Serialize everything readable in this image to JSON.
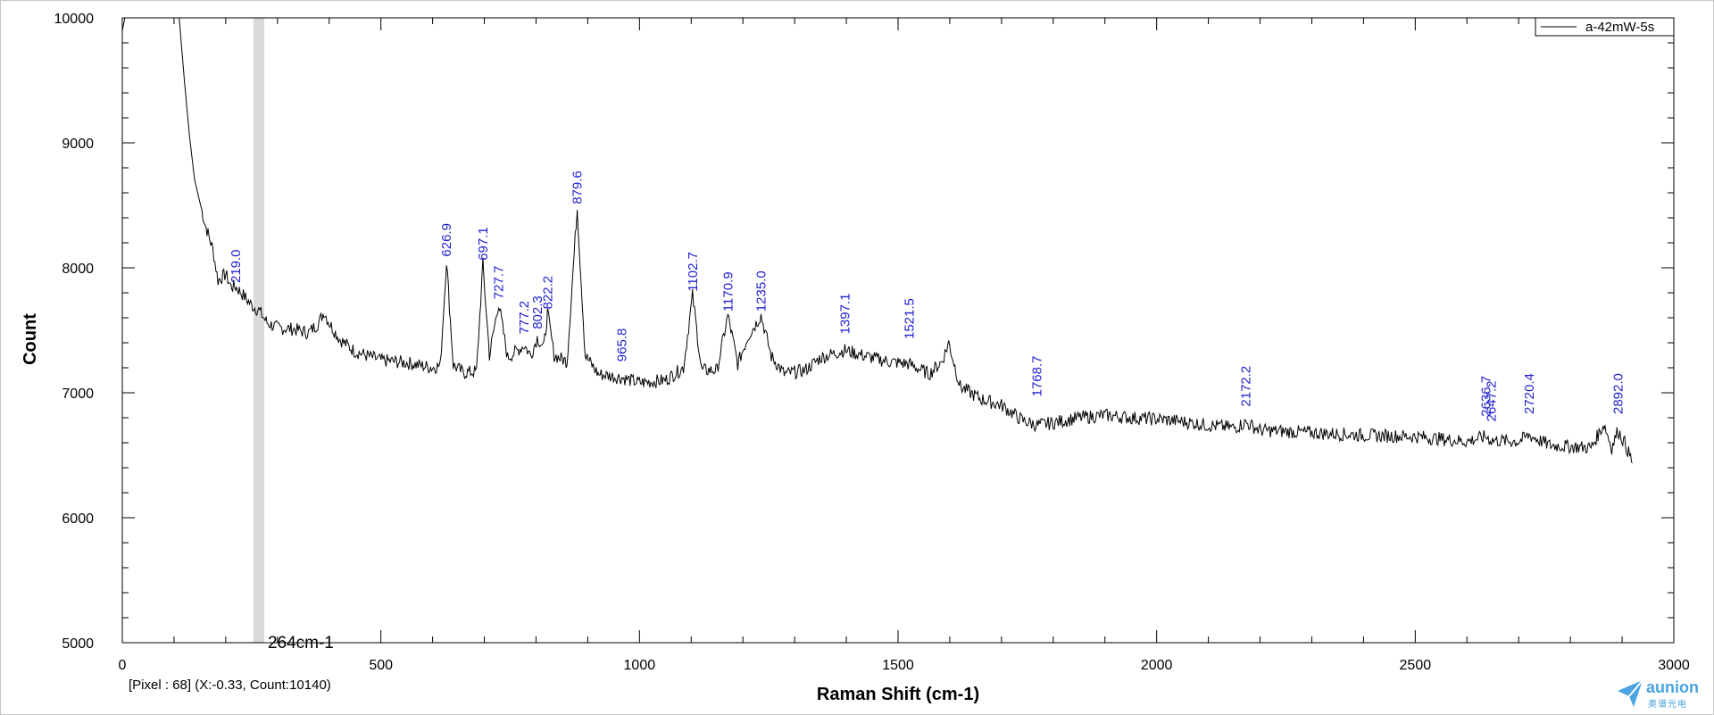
{
  "status_bar": {
    "readout": "[Pixel : 68] (X:-0.33, Count:10140)"
  },
  "cursor": {
    "label": "264cm-1",
    "x_value": 264
  },
  "logo": {
    "word": "aunion",
    "sub": "奥谱光电"
  },
  "colors": {
    "trace": "#000000",
    "peak_labels": "#1f1fd0",
    "cursor_band": "#d9d9d9",
    "logo": "#4ba3df"
  },
  "chart_data": {
    "type": "line",
    "xlabel": "Raman Shift (cm-1)",
    "ylabel": "Count",
    "xlim": [
      0,
      3000
    ],
    "ylim": [
      5000,
      10000
    ],
    "x_ticks": [
      0,
      500,
      1000,
      1500,
      2000,
      2500,
      3000
    ],
    "y_ticks": [
      5000,
      6000,
      7000,
      8000,
      9000,
      10000
    ],
    "grid": false,
    "legend": {
      "position": "top-right",
      "entries": [
        "a-42mW-5s"
      ]
    },
    "series": [
      {
        "name": "a-42mW-5s",
        "points": [
          [
            0,
            9900
          ],
          [
            5,
            10000
          ],
          [
            110,
            10000
          ],
          [
            120,
            9500
          ],
          [
            130,
            9050
          ],
          [
            140,
            8700
          ],
          [
            160,
            8350
          ],
          [
            175,
            8150
          ],
          [
            185,
            7900
          ],
          [
            200,
            7950
          ],
          [
            210,
            7850
          ],
          [
            219,
            7850
          ],
          [
            230,
            7800
          ],
          [
            250,
            7700
          ],
          [
            264,
            7660
          ],
          [
            280,
            7560
          ],
          [
            300,
            7520
          ],
          [
            330,
            7510
          ],
          [
            360,
            7480
          ],
          [
            380,
            7560
          ],
          [
            390,
            7650
          ],
          [
            400,
            7560
          ],
          [
            420,
            7430
          ],
          [
            450,
            7330
          ],
          [
            500,
            7260
          ],
          [
            550,
            7240
          ],
          [
            600,
            7200
          ],
          [
            615,
            7220
          ],
          [
            626.9,
            8060
          ],
          [
            640,
            7220
          ],
          [
            660,
            7160
          ],
          [
            685,
            7170
          ],
          [
            697.1,
            8030
          ],
          [
            710,
            7300
          ],
          [
            727.7,
            7720
          ],
          [
            745,
            7280
          ],
          [
            777.2,
            7380
          ],
          [
            790,
            7300
          ],
          [
            802.3,
            7440
          ],
          [
            815,
            7360
          ],
          [
            822.2,
            7640
          ],
          [
            835,
            7300
          ],
          [
            860,
            7250
          ],
          [
            879.6,
            8480
          ],
          [
            895,
            7300
          ],
          [
            920,
            7150
          ],
          [
            965.8,
            7120
          ],
          [
            1000,
            7080
          ],
          [
            1050,
            7100
          ],
          [
            1085,
            7200
          ],
          [
            1102.7,
            7780
          ],
          [
            1120,
            7180
          ],
          [
            1150,
            7180
          ],
          [
            1170.9,
            7620
          ],
          [
            1190,
            7230
          ],
          [
            1210,
            7450
          ],
          [
            1235,
            7620
          ],
          [
            1255,
            7290
          ],
          [
            1280,
            7150
          ],
          [
            1320,
            7180
          ],
          [
            1350,
            7280
          ],
          [
            1397.1,
            7340
          ],
          [
            1440,
            7290
          ],
          [
            1480,
            7250
          ],
          [
            1521.5,
            7230
          ],
          [
            1560,
            7150
          ],
          [
            1585,
            7250
          ],
          [
            1598,
            7400
          ],
          [
            1620,
            7050
          ],
          [
            1660,
            6950
          ],
          [
            1700,
            6900
          ],
          [
            1740,
            6780
          ],
          [
            1768.7,
            6740
          ],
          [
            1800,
            6760
          ],
          [
            1850,
            6800
          ],
          [
            1900,
            6820
          ],
          [
            1950,
            6800
          ],
          [
            2000,
            6790
          ],
          [
            2050,
            6770
          ],
          [
            2100,
            6740
          ],
          [
            2150,
            6720
          ],
          [
            2172.2,
            6760
          ],
          [
            2200,
            6700
          ],
          [
            2300,
            6680
          ],
          [
            2400,
            6660
          ],
          [
            2500,
            6650
          ],
          [
            2600,
            6610
          ],
          [
            2636.7,
            6650
          ],
          [
            2647.2,
            6620
          ],
          [
            2700,
            6610
          ],
          [
            2720.4,
            6660
          ],
          [
            2760,
            6580
          ],
          [
            2800,
            6570
          ],
          [
            2840,
            6560
          ],
          [
            2865,
            6750
          ],
          [
            2880,
            6560
          ],
          [
            2892,
            6700
          ],
          [
            2905,
            6600
          ],
          [
            2920,
            6440
          ]
        ]
      }
    ],
    "peak_labels": [
      {
        "text": "219.0",
        "x": 219.0,
        "y": 7850
      },
      {
        "text": "626.9",
        "x": 626.9,
        "y": 8060
      },
      {
        "text": "697.1",
        "x": 697.1,
        "y": 8030
      },
      {
        "text": "727.7",
        "x": 727.7,
        "y": 7720
      },
      {
        "text": "777.2",
        "x": 777.2,
        "y": 7440
      },
      {
        "text": "802.3",
        "x": 802.3,
        "y": 7480
      },
      {
        "text": "822.2",
        "x": 822.2,
        "y": 7640
      },
      {
        "text": "879.6",
        "x": 879.6,
        "y": 8480
      },
      {
        "text": "965.8",
        "x": 965.8,
        "y": 7220
      },
      {
        "text": "1102.7",
        "x": 1102.7,
        "y": 7780
      },
      {
        "text": "1170.9",
        "x": 1170.9,
        "y": 7620
      },
      {
        "text": "1235.0",
        "x": 1235.0,
        "y": 7620
      },
      {
        "text": "1397.1",
        "x": 1397.1,
        "y": 7440
      },
      {
        "text": "1521.5",
        "x": 1521.5,
        "y": 7400
      },
      {
        "text": "1768.7",
        "x": 1768.7,
        "y": 6940
      },
      {
        "text": "2172.2",
        "x": 2172.2,
        "y": 6860
      },
      {
        "text": "2636.7",
        "x": 2636.7,
        "y": 6780
      },
      {
        "text": "2647.2",
        "x": 2647.2,
        "y": 6740
      },
      {
        "text": "2720.4",
        "x": 2720.4,
        "y": 6800
      },
      {
        "text": "2892.0",
        "x": 2892.0,
        "y": 6800
      }
    ]
  }
}
